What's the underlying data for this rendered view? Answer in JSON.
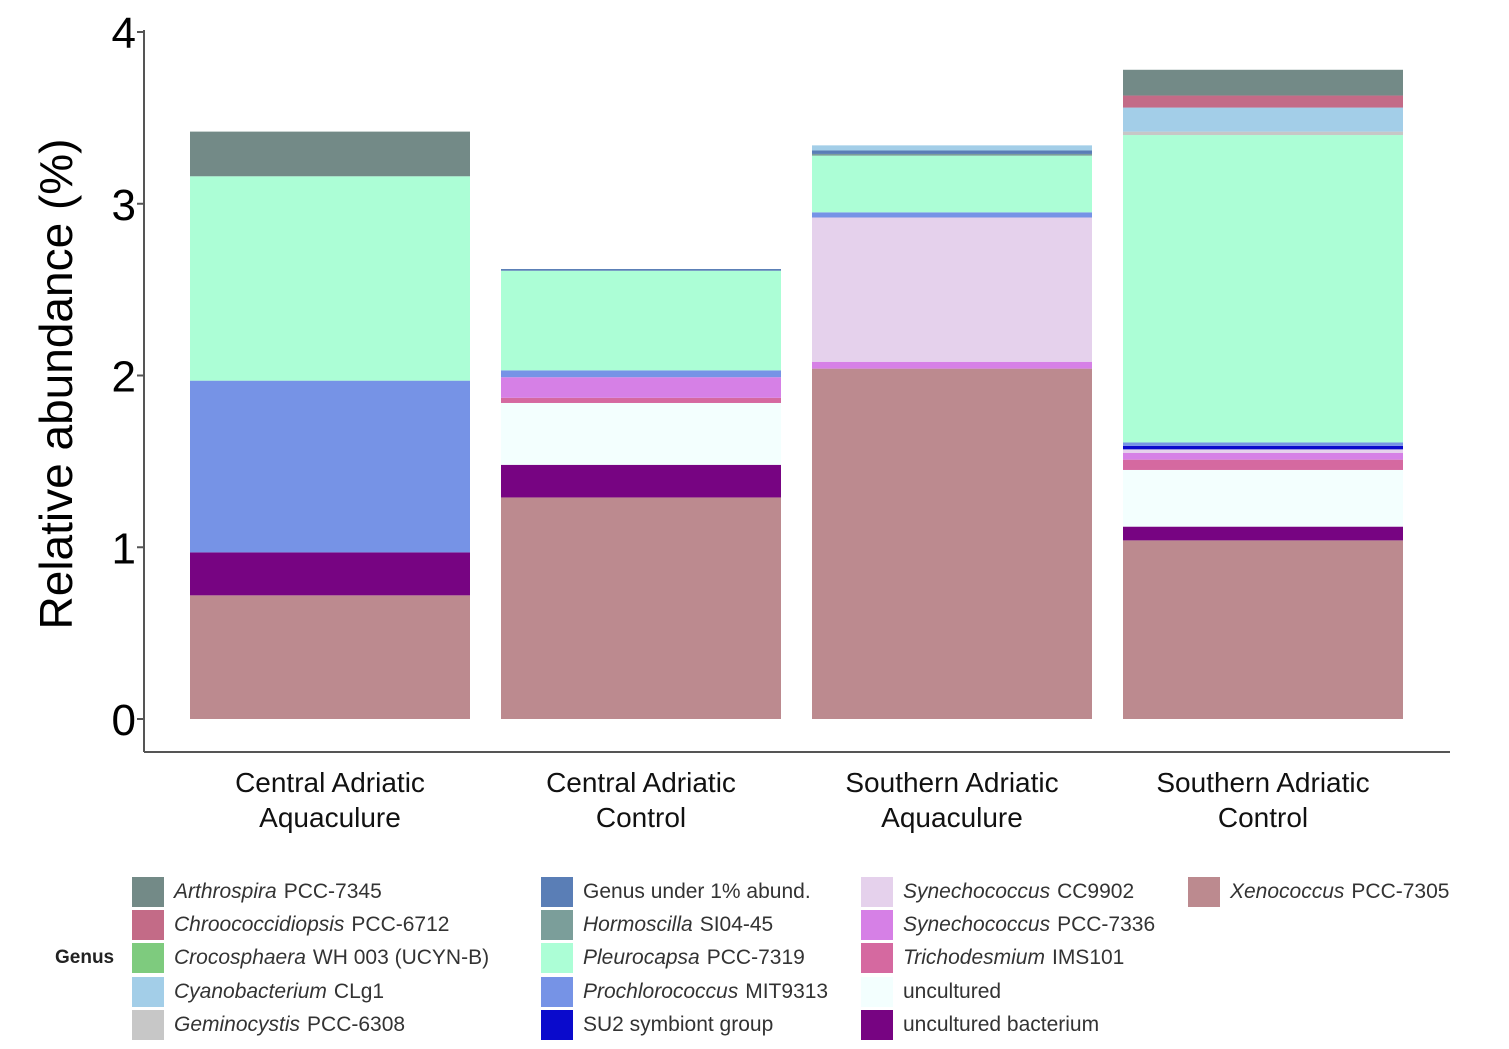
{
  "chart_data": {
    "type": "bar",
    "stacked": true,
    "ylabel": "Relative abundance (%)",
    "xlabel": "",
    "ylim": [
      0,
      4
    ],
    "yticks": [
      0,
      1,
      2,
      3,
      4
    ],
    "categories": [
      "Central Adriatic\nAquaculure",
      "Central Adriatic\nControl",
      "Southern Adriatic\nAquaculure",
      "Southern Adriatic\nControl"
    ],
    "legend_title": "Genus",
    "legend_position": "bottom",
    "series": [
      {
        "name": "Xenococcus PCC-7305",
        "genus": "Xenococcus",
        "suffix": "PCC-7305",
        "italic": true,
        "color": "#bc8a8f",
        "values": [
          0.72,
          1.29,
          2.04,
          1.04
        ]
      },
      {
        "name": "uncultured bacterium",
        "genus": "",
        "suffix": "uncultured bacterium",
        "italic": false,
        "color": "#770482",
        "values": [
          0.25,
          0.19,
          0.0,
          0.08
        ]
      },
      {
        "name": "uncultured",
        "genus": "",
        "suffix": "uncultured",
        "italic": false,
        "color": "#f3fffe",
        "values": [
          0.0,
          0.36,
          0.0,
          0.33
        ]
      },
      {
        "name": "Trichodesmium IMS101",
        "genus": "Trichodesmium",
        "suffix": "IMS101",
        "italic": true,
        "color": "#d569a0",
        "values": [
          0.0,
          0.03,
          0.0,
          0.06
        ]
      },
      {
        "name": "Synechococcus PCC-7336",
        "genus": "Synechococcus",
        "suffix": "PCC-7336",
        "italic": true,
        "color": "#d680e6",
        "values": [
          0.0,
          0.12,
          0.04,
          0.04
        ]
      },
      {
        "name": "Synechococcus CC9902",
        "genus": "Synechococcus",
        "suffix": "CC9902",
        "italic": true,
        "color": "#e5d1ec",
        "values": [
          0.0,
          0.0,
          0.84,
          0.02
        ]
      },
      {
        "name": "SU2 symbiont group",
        "genus": "",
        "suffix": "SU2 symbiont group",
        "italic": false,
        "color": "#0a0acc",
        "values": [
          0.0,
          0.0,
          0.0,
          0.02
        ]
      },
      {
        "name": "Prochlorococcus MIT9313",
        "genus": "Prochlorococcus",
        "suffix": "MIT9313",
        "italic": true,
        "color": "#7693e6",
        "values": [
          1.0,
          0.04,
          0.03,
          0.02
        ]
      },
      {
        "name": "Pleurocapsa PCC-7319",
        "genus": "Pleurocapsa",
        "suffix": "PCC-7319",
        "italic": true,
        "color": "#acfed6",
        "values": [
          1.19,
          0.58,
          0.33,
          1.79
        ]
      },
      {
        "name": "Hormoscilla SI04-45",
        "genus": "Hormoscilla",
        "suffix": "SI04-45",
        "italic": true,
        "color": "#7b9e9a",
        "values": [
          0.0,
          0.0,
          0.01,
          0.0
        ]
      },
      {
        "name": "Genus under 1% abund.",
        "genus": "",
        "suffix": "Genus under 1% abund.",
        "italic": false,
        "color": "#5a7eb6",
        "values": [
          0.0,
          0.01,
          0.02,
          0.0
        ]
      },
      {
        "name": "Geminocystis PCC-6308",
        "genus": "Geminocystis",
        "suffix": "PCC-6308",
        "italic": true,
        "color": "#c7c7c7",
        "values": [
          0.0,
          0.0,
          0.0,
          0.02
        ]
      },
      {
        "name": "Cyanobacterium CLg1",
        "genus": "Cyanobacterium",
        "suffix": "CLg1",
        "italic": true,
        "color": "#a3cee8",
        "values": [
          0.0,
          0.0,
          0.03,
          0.14
        ]
      },
      {
        "name": "Crocosphaera WH 003 (UCYN-B)",
        "genus": "Crocosphaera",
        "suffix": "WH 003 (UCYN-B)",
        "italic": true,
        "color": "#7ecb7e",
        "values": [
          0.0,
          0.0,
          0.0,
          0.0
        ]
      },
      {
        "name": "Chroococcidiopsis PCC-6712",
        "genus": "Chroococcidiopsis",
        "suffix": "PCC-6712",
        "italic": true,
        "color": "#c36b87",
        "values": [
          0.0,
          0.0,
          0.0,
          0.07
        ]
      },
      {
        "name": "Arthrospira PCC-7345",
        "genus": "Arthrospira",
        "suffix": "PCC-7345",
        "italic": true,
        "color": "#738a87",
        "values": [
          0.26,
          0.0,
          0.0,
          0.15
        ]
      }
    ],
    "legend_order": [
      "Arthrospira PCC-7345",
      "Chroococcidiopsis PCC-6712",
      "Crocosphaera WH 003 (UCYN-B)",
      "Cyanobacterium CLg1",
      "Geminocystis PCC-6308",
      "Genus under 1% abund.",
      "Hormoscilla SI04-45",
      "Pleurocapsa PCC-7319",
      "Prochlorococcus MIT9313",
      "SU2 symbiont group",
      "Synechococcus CC9902",
      "Synechococcus PCC-7336",
      "Trichodesmium IMS101",
      "uncultured",
      "uncultured bacterium",
      "Xenococcus PCC-7305"
    ]
  }
}
